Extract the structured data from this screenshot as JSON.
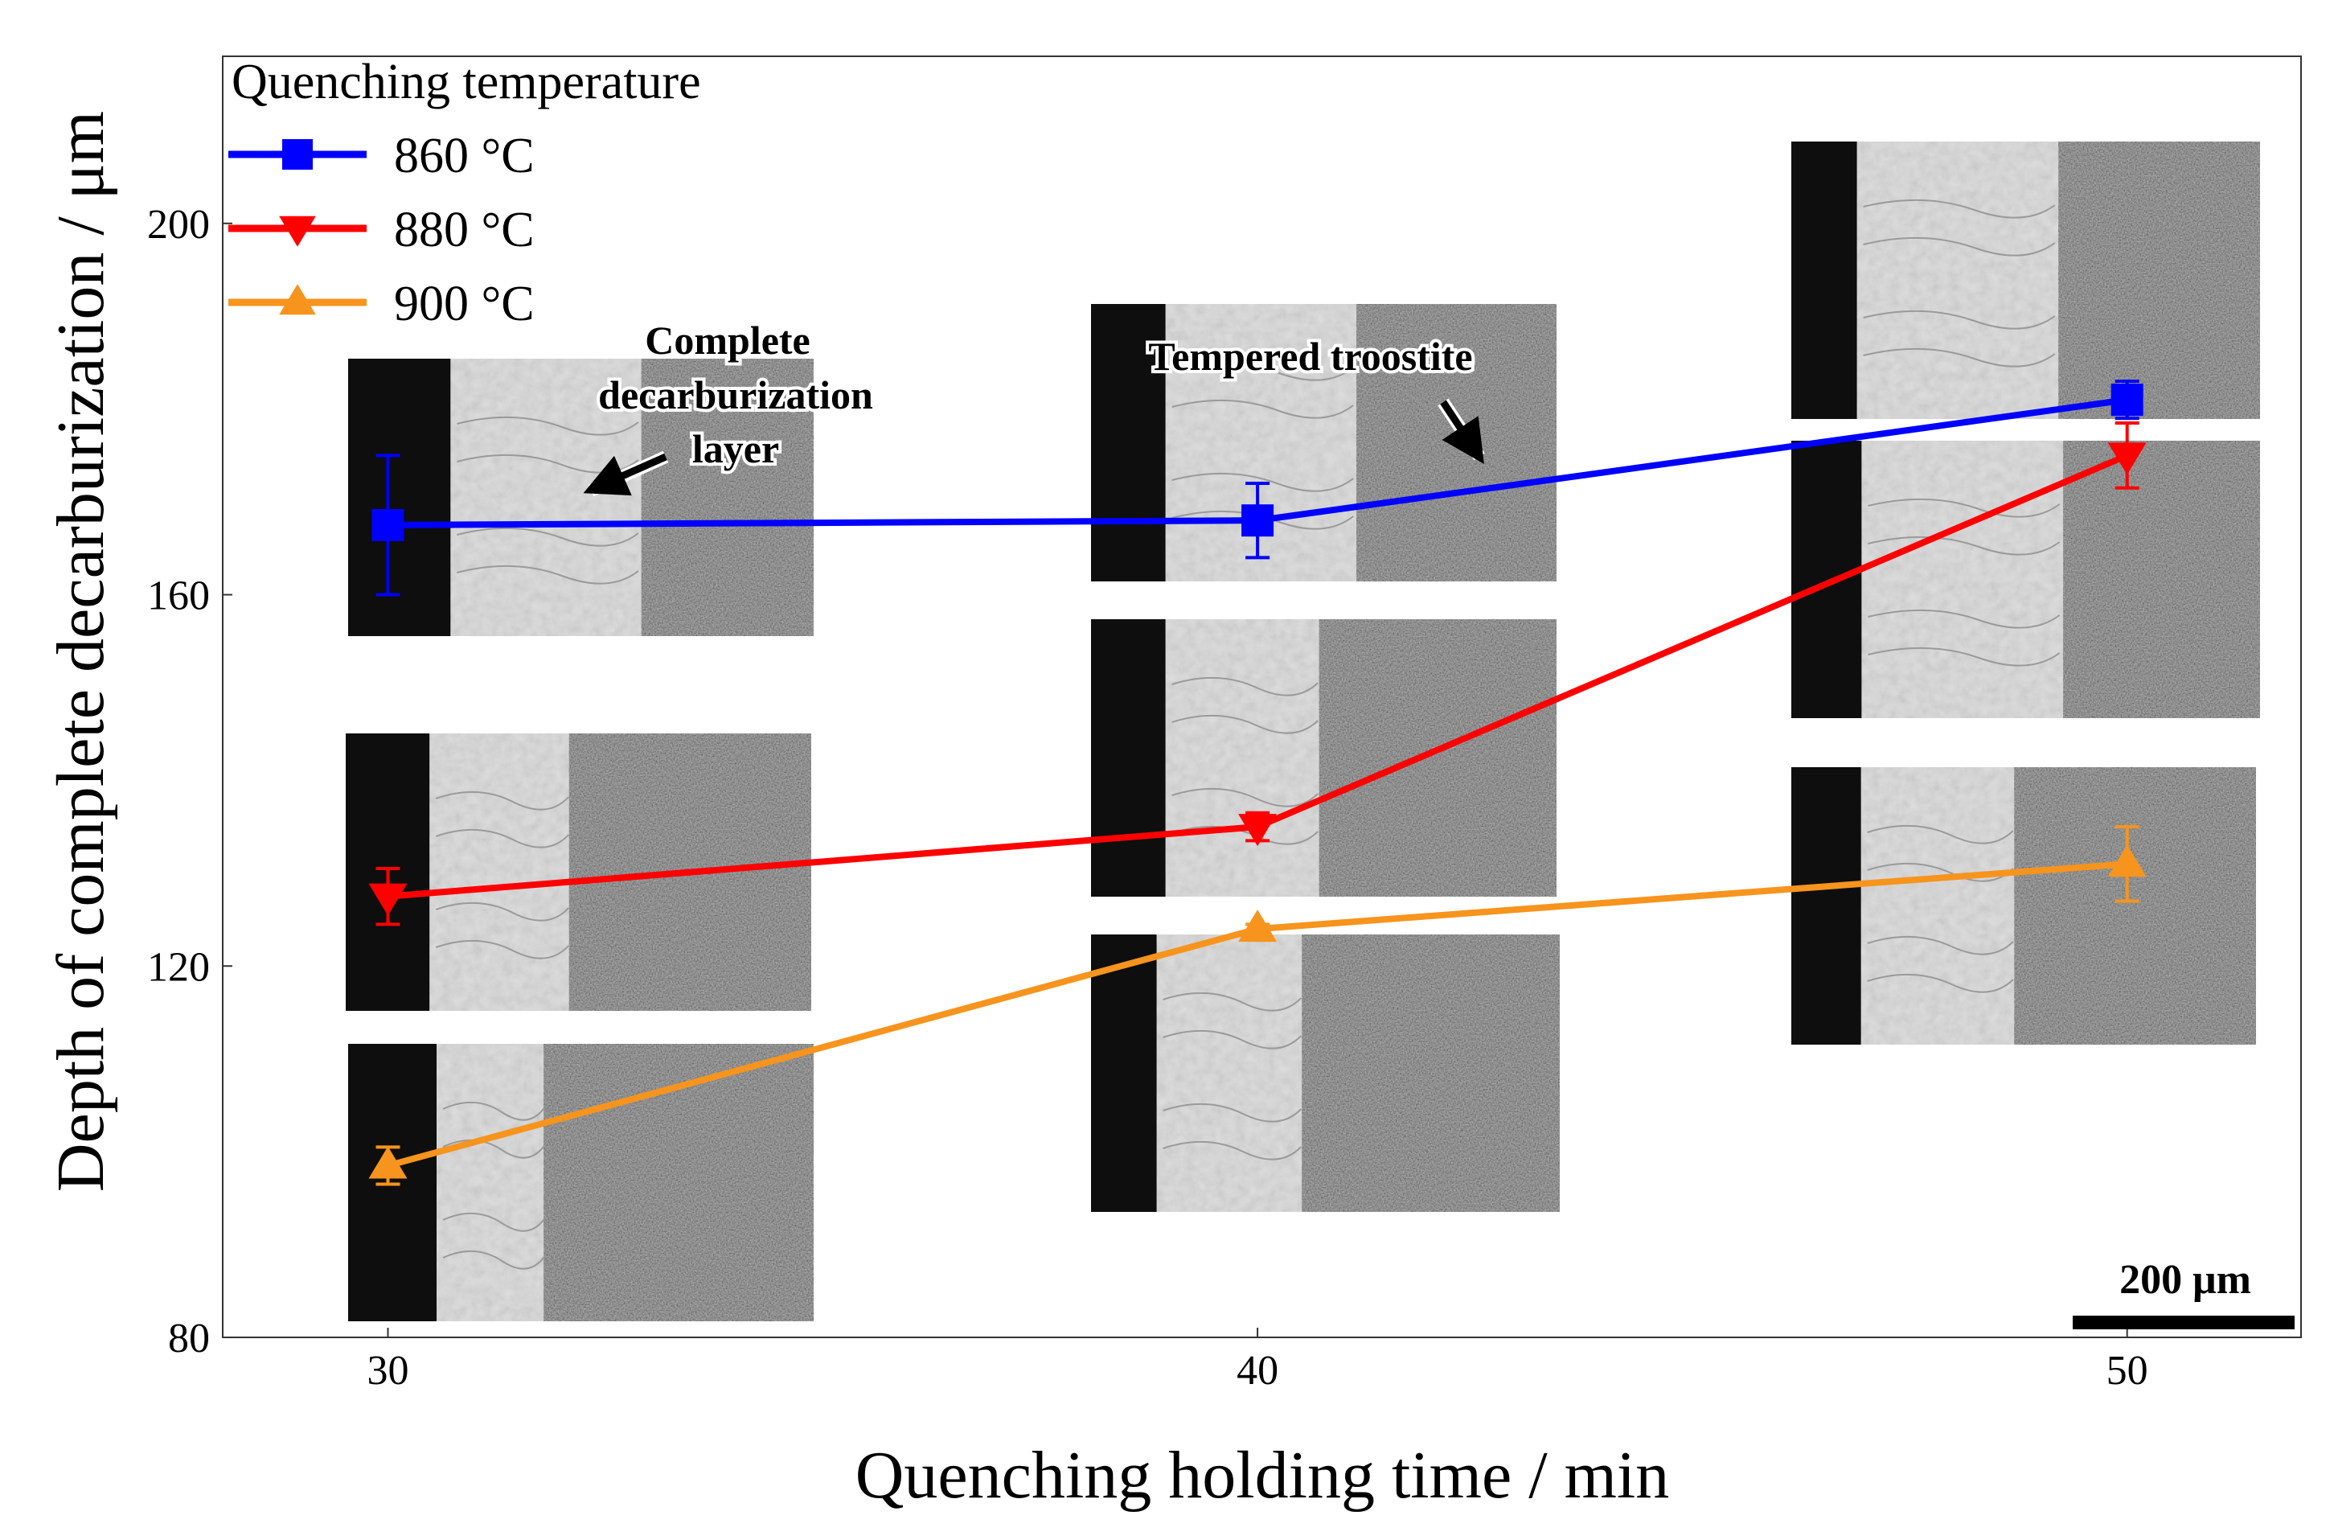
{
  "chart_data": {
    "type": "line",
    "title": "",
    "xlabel": "Quenching holding time / min",
    "ylabel": "Depth of complete decarburization / μm",
    "x": [
      30,
      40,
      50
    ],
    "xlim": [
      28.1,
      52.0
    ],
    "ylim": [
      80,
      218
    ],
    "xticks": [
      30,
      40,
      50
    ],
    "yticks": [
      80,
      120,
      160,
      200
    ],
    "grid": false,
    "legend": {
      "title": "Quenching temperature",
      "position": "top-left"
    },
    "series": [
      {
        "name": "860 °C",
        "color": "#0000ff",
        "marker": "square",
        "values": [
          167.5,
          168,
          181
        ],
        "errors": [
          7.5,
          4,
          2
        ]
      },
      {
        "name": "880 °C",
        "color": "#ff0000",
        "marker": "triangle-down",
        "values": [
          127.5,
          135,
          175
        ],
        "errors": [
          3,
          1.5,
          3.5
        ]
      },
      {
        "name": "900 °C",
        "color": "#f7941d",
        "marker": "triangle-up",
        "values": [
          98.5,
          124,
          131
        ],
        "errors": [
          2,
          0.5,
          4
        ]
      }
    ],
    "annotations": [
      {
        "id": "decarb",
        "lines": [
          "Complete",
          "decarburization",
          "layer"
        ]
      },
      {
        "id": "troostite",
        "lines": [
          "Tempered troostite"
        ]
      }
    ],
    "scale_bar": "200 μm"
  }
}
